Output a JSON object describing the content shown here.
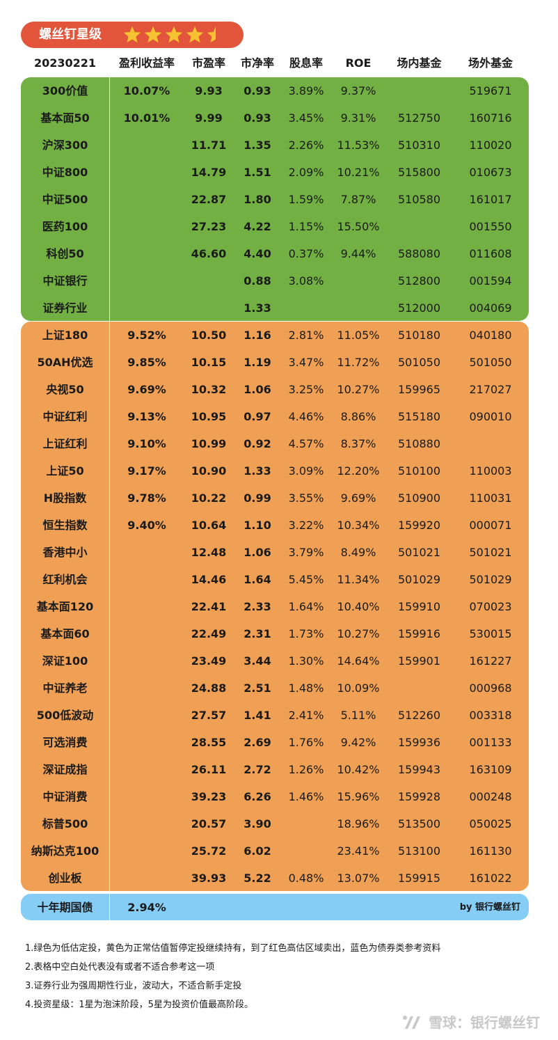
{
  "badge": {
    "title": "螺丝钉星级",
    "rating": 4.5,
    "max_stars": 5
  },
  "colors": {
    "badge": "#e2553a",
    "star": "#f7c231",
    "undervalued": "#72b043",
    "normal": "#f0a055",
    "bond": "#86cdf6",
    "watermark": "#c8c8c8"
  },
  "chart_data": {
    "type": "table",
    "date": "20230221",
    "columns": [
      "盈利收益率",
      "市盈率",
      "市净率",
      "股息率",
      "ROE",
      "场内基金",
      "场外基金"
    ],
    "groups": [
      {
        "key": "undervalued",
        "color": "#72b043",
        "rows": [
          [
            "300价值",
            "10.07%",
            "9.93",
            "0.93",
            "3.89%",
            "9.37%",
            "",
            "519671"
          ],
          [
            "基本面50",
            "10.01%",
            "9.99",
            "0.93",
            "3.45%",
            "9.31%",
            "512750",
            "160716"
          ],
          [
            "沪深300",
            "",
            "11.71",
            "1.35",
            "2.26%",
            "11.53%",
            "510310",
            "110020"
          ],
          [
            "中证800",
            "",
            "14.79",
            "1.51",
            "2.09%",
            "10.21%",
            "515800",
            "010673"
          ],
          [
            "中证500",
            "",
            "22.87",
            "1.80",
            "1.59%",
            "7.87%",
            "510580",
            "161017"
          ],
          [
            "医药100",
            "",
            "27.23",
            "4.22",
            "1.15%",
            "15.50%",
            "",
            "001550"
          ],
          [
            "科创50",
            "",
            "46.60",
            "4.40",
            "0.37%",
            "9.44%",
            "588080",
            "011608"
          ],
          [
            "中证银行",
            "",
            "",
            "0.88",
            "3.08%",
            "",
            "512800",
            "001594"
          ],
          [
            "证券行业",
            "",
            "",
            "1.33",
            "",
            "",
            "512000",
            "004069"
          ]
        ]
      },
      {
        "key": "normal",
        "color": "#f0a055",
        "rows": [
          [
            "上证180",
            "9.52%",
            "10.50",
            "1.16",
            "2.81%",
            "11.05%",
            "510180",
            "040180"
          ],
          [
            "50AH优选",
            "9.85%",
            "10.15",
            "1.19",
            "3.47%",
            "11.72%",
            "501050",
            "501050"
          ],
          [
            "央视50",
            "9.69%",
            "10.32",
            "1.06",
            "3.25%",
            "10.27%",
            "159965",
            "217027"
          ],
          [
            "中证红利",
            "9.13%",
            "10.95",
            "0.97",
            "4.46%",
            "8.86%",
            "515180",
            "090010"
          ],
          [
            "上证红利",
            "9.10%",
            "10.99",
            "0.92",
            "4.57%",
            "8.37%",
            "510880",
            ""
          ],
          [
            "上证50",
            "9.17%",
            "10.90",
            "1.33",
            "3.09%",
            "12.20%",
            "510100",
            "110003"
          ],
          [
            "H股指数",
            "9.78%",
            "10.22",
            "0.99",
            "3.55%",
            "9.69%",
            "510900",
            "110031"
          ],
          [
            "恒生指数",
            "9.40%",
            "10.64",
            "1.10",
            "3.22%",
            "10.34%",
            "159920",
            "000071"
          ],
          [
            "香港中小",
            "",
            "12.48",
            "1.06",
            "3.79%",
            "8.49%",
            "501021",
            "501021"
          ],
          [
            "红利机会",
            "",
            "14.46",
            "1.64",
            "5.45%",
            "11.34%",
            "501029",
            "501029"
          ],
          [
            "基本面120",
            "",
            "22.41",
            "2.33",
            "1.64%",
            "10.40%",
            "159910",
            "070023"
          ],
          [
            "基本面60",
            "",
            "22.49",
            "2.31",
            "1.73%",
            "10.27%",
            "159916",
            "530015"
          ],
          [
            "深证100",
            "",
            "23.49",
            "3.44",
            "1.30%",
            "14.64%",
            "159901",
            "161227"
          ],
          [
            "中证养老",
            "",
            "24.88",
            "2.51",
            "1.48%",
            "10.09%",
            "",
            "000968"
          ],
          [
            "500低波动",
            "",
            "27.57",
            "1.41",
            "2.41%",
            "5.11%",
            "512260",
            "003318"
          ],
          [
            "可选消费",
            "",
            "28.55",
            "2.69",
            "1.76%",
            "9.42%",
            "159936",
            "001133"
          ],
          [
            "深证成指",
            "",
            "26.11",
            "2.72",
            "1.26%",
            "10.42%",
            "159943",
            "163109"
          ],
          [
            "中证消费",
            "",
            "39.23",
            "6.26",
            "1.46%",
            "15.96%",
            "159928",
            "000248"
          ],
          [
            "标普500",
            "",
            "20.57",
            "3.90",
            "",
            "18.96%",
            "513500",
            "050025"
          ],
          [
            "纳斯达克100",
            "",
            "25.72",
            "6.02",
            "",
            "23.41%",
            "513100",
            "161130"
          ],
          [
            "创业板",
            "",
            "39.93",
            "5.22",
            "0.48%",
            "13.07%",
            "159915",
            "161022"
          ]
        ]
      }
    ],
    "bond": {
      "name": "十年期国债",
      "yield": "2.94%",
      "credit": "by 银行螺丝钉"
    }
  },
  "notes": [
    "1.绿色为低估定投，黄色为正常估值暂停定投继续持有，到了红色高估区域卖出，蓝色为债券类参考资料",
    "2.表格中空白处代表没有或者不适合参考这一项",
    "3.证券行业为强周期性行业，波动大，不适合新手定投",
    "4.投资星级：1星为泡沫阶段，5星为投资价值最高阶段。"
  ],
  "watermark": "雪球：银行螺丝钉"
}
